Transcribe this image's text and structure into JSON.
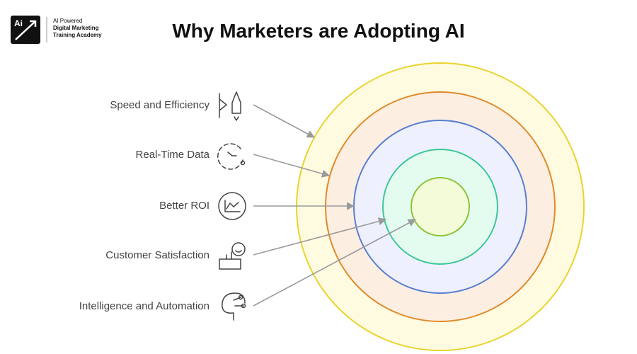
{
  "logo": {
    "mark": "Ai",
    "lines": [
      "AI Powered",
      "Digital Marketing",
      "Training Academy"
    ]
  },
  "title": "Why Marketers are Adopting AI",
  "items": [
    {
      "label": "Speed and Efficiency"
    },
    {
      "label": "Real-Time Data"
    },
    {
      "label": "Better ROI"
    },
    {
      "label": "Customer Satisfaction"
    },
    {
      "label": "Intelligence and Automation"
    }
  ]
}
